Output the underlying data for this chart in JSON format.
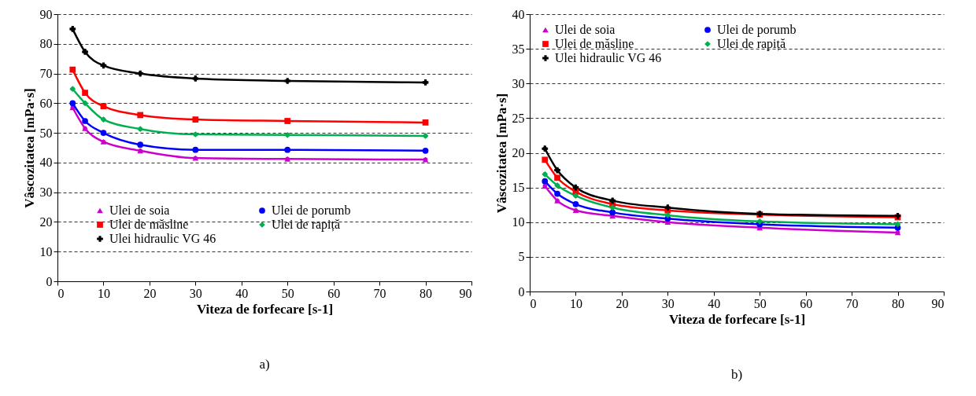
{
  "chart_data": [
    {
      "type": "line",
      "xlabel": "Viteza de forfecare [s-1]",
      "ylabel": "Vâscozitatea  [mPa·s]",
      "annotations": [
        "a)"
      ],
      "xlim": [
        0,
        90
      ],
      "xticks": [
        0,
        10,
        20,
        30,
        40,
        50,
        60,
        70,
        80,
        90
      ],
      "ylim": [
        0,
        90
      ],
      "yticks": [
        0,
        10,
        20,
        30,
        40,
        50,
        60,
        70,
        80,
        90
      ],
      "grid": "y",
      "legend": "bottom left",
      "line_style": "solid",
      "x": [
        3.3,
        6,
        10,
        18,
        30,
        50,
        80
      ],
      "series": [
        {
          "name": "Ulei de soia",
          "color": "#cc00cc",
          "marker": "triangle",
          "values": [
            58.5,
            51.5,
            47,
            44,
            41.5,
            41.2,
            41
          ]
        },
        {
          "name": "Ulei de porumb",
          "color": "#0000ff",
          "marker": "circle",
          "values": [
            60,
            54,
            50,
            46,
            44.3,
            44.3,
            44
          ]
        },
        {
          "name": "Ulei de măsline",
          "color": "#ff0000",
          "marker": "square",
          "values": [
            71.3,
            63.5,
            59,
            56,
            54.5,
            54,
            53.5
          ]
        },
        {
          "name": "Ulei de rapiță",
          "color": "#00b050",
          "marker": "diamond",
          "values": [
            64.8,
            60,
            54.5,
            51.3,
            49.5,
            49.3,
            49
          ]
        },
        {
          "name": "Ulei hidraulic VG 46",
          "color": "#000000",
          "marker": "cross",
          "values": [
            85,
            77.3,
            72.7,
            70,
            68.3,
            67.5,
            67
          ]
        }
      ]
    },
    {
      "type": "line",
      "xlabel": "Viteza de forfecare [s-1]",
      "ylabel": "Vâscozitatea  [mPa·s]",
      "annotations": [
        "b)"
      ],
      "xlim": [
        0,
        90
      ],
      "xticks": [
        0,
        10,
        20,
        30,
        40,
        50,
        60,
        70,
        80,
        90
      ],
      "ylim": [
        0,
        40
      ],
      "yticks": [
        0,
        5,
        10,
        15,
        20,
        25,
        30,
        35,
        40
      ],
      "grid": "y",
      "legend": "top left",
      "line_style": "solid",
      "x": [
        3.3,
        6,
        10,
        18,
        30,
        50,
        80
      ],
      "series": [
        {
          "name": "Ulei de soia",
          "color": "#cc00cc",
          "marker": "triangle",
          "values": [
            15.2,
            13.1,
            11.7,
            10.9,
            10.0,
            9.2,
            8.5
          ]
        },
        {
          "name": "Ulei de porumb",
          "color": "#0000ff",
          "marker": "circle",
          "values": [
            15.9,
            14.1,
            12.6,
            11.4,
            10.5,
            9.7,
            9.2
          ]
        },
        {
          "name": "Ulei de măsline",
          "color": "#ff0000",
          "marker": "square",
          "values": [
            19,
            16.4,
            14.4,
            12.6,
            11.7,
            11.1,
            10.7
          ]
        },
        {
          "name": "Ulei de rapiță",
          "color": "#00b050",
          "marker": "diamond",
          "values": [
            16.9,
            15.3,
            13.8,
            12.1,
            11.0,
            10.1,
            9.7
          ]
        },
        {
          "name": "Ulei hidraulic VG 46",
          "color": "#000000",
          "marker": "cross",
          "values": [
            20.6,
            17.5,
            15,
            13.1,
            12.1,
            11.2,
            10.9
          ]
        }
      ]
    }
  ]
}
